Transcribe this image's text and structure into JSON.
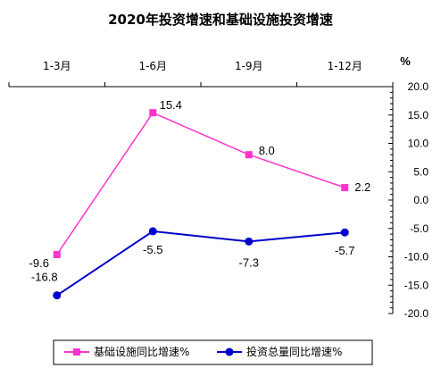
{
  "chart_data": {
    "type": "line",
    "title": "2020年投资增速和基础设施投资增速",
    "unit": "%",
    "categories": [
      "1-3月",
      "1-6月",
      "1-9月",
      "1-12月"
    ],
    "ylim": [
      -20,
      20
    ],
    "ytick_step": 5,
    "y_ticks": [
      "20.0",
      "15.0",
      "10.0",
      "5.0",
      "0.0",
      "-5.0",
      "-10.0",
      "-15.0",
      "-20.0"
    ],
    "y_axis_side": "right",
    "x_axis_position": "top",
    "grid": false,
    "legend_position": "bottom",
    "series": [
      {
        "name": "基础设施同比增速%",
        "values": [
          -9.6,
          15.4,
          8.0,
          2.2
        ],
        "labels": [
          "-9.6",
          "15.4",
          "8.0",
          "2.2"
        ],
        "color": "#FF33CC",
        "marker": "square"
      },
      {
        "name": "投资总量同比增速%",
        "values": [
          -16.8,
          -5.5,
          -7.3,
          -5.7
        ],
        "labels": [
          "-16.8",
          "-5.5",
          "-7.3",
          "-5.7"
        ],
        "color": "#0000CC",
        "marker": "circle"
      }
    ]
  }
}
